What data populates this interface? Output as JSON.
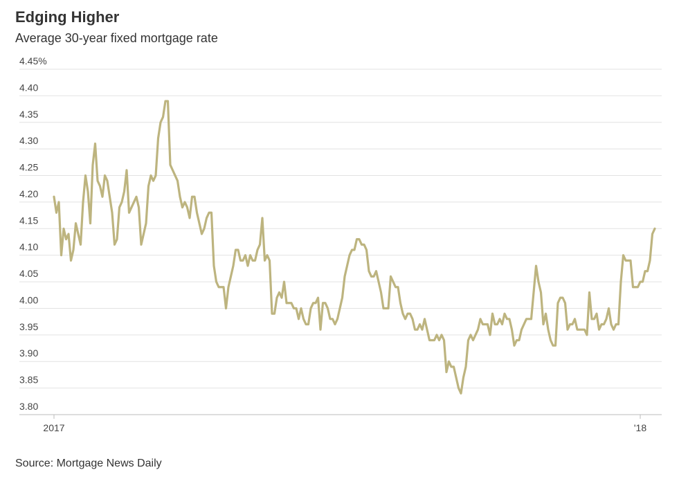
{
  "chart_data": {
    "type": "line",
    "title": "Edging Higher",
    "subtitle": "Average 30-year fixed mortgage rate",
    "source": "Source: Mortgage News Daily",
    "color": "#bdb47f",
    "grid": true,
    "ylim": [
      3.8,
      4.45
    ],
    "yticks": [
      {
        "value": 3.8,
        "label": "3.80"
      },
      {
        "value": 3.85,
        "label": "3.85"
      },
      {
        "value": 3.9,
        "label": "3.90"
      },
      {
        "value": 3.95,
        "label": "3.95"
      },
      {
        "value": 4.0,
        "label": "4.00"
      },
      {
        "value": 4.05,
        "label": "4.05"
      },
      {
        "value": 4.1,
        "label": "4.10"
      },
      {
        "value": 4.15,
        "label": "4.15"
      },
      {
        "value": 4.2,
        "label": "4.20"
      },
      {
        "value": 4.25,
        "label": "4.25"
      },
      {
        "value": 4.3,
        "label": "4.30"
      },
      {
        "value": 4.35,
        "label": "4.35"
      },
      {
        "value": 4.4,
        "label": "4.40"
      },
      {
        "value": 4.45,
        "label": "4.45%"
      }
    ],
    "categories": [
      "2017",
      null,
      null,
      null,
      null,
      null,
      null,
      null,
      null,
      null,
      null,
      null,
      null,
      null,
      null,
      null,
      null,
      null,
      null,
      null,
      null,
      null,
      null,
      null,
      null,
      null,
      null,
      null,
      null,
      null,
      null,
      null,
      null,
      null,
      null,
      null,
      null,
      null,
      null,
      null,
      null,
      null,
      null,
      null,
      null,
      null,
      null,
      null,
      null,
      null,
      null,
      null,
      null,
      null,
      null,
      null,
      null,
      null,
      null,
      null,
      null,
      null,
      null,
      null,
      null,
      null,
      null,
      null,
      null,
      null,
      null,
      null,
      null,
      null,
      null,
      null,
      null,
      null,
      null,
      null,
      null,
      null,
      null,
      null,
      null,
      null,
      null,
      null,
      null,
      null,
      null,
      null,
      null,
      null,
      null,
      null,
      null,
      null,
      null,
      null,
      null,
      null,
      null,
      null,
      null,
      null,
      null,
      null,
      null,
      null,
      null,
      null,
      null,
      null,
      null,
      null,
      null,
      null,
      null,
      null,
      null,
      null,
      null,
      null,
      null,
      null,
      null,
      null,
      null,
      null,
      null,
      null,
      null,
      null,
      null,
      null,
      null,
      null,
      null,
      null,
      null,
      null,
      null,
      null,
      null,
      null,
      null,
      null,
      null,
      null,
      null,
      null,
      null,
      null,
      null,
      null,
      null,
      null,
      null,
      null,
      null,
      null,
      null,
      null,
      null,
      null,
      null,
      null,
      null,
      null,
      null,
      null,
      null,
      null,
      null,
      null,
      null,
      null,
      null,
      null,
      null,
      null,
      null,
      null,
      null,
      null,
      null,
      null,
      null,
      null,
      null,
      null,
      null,
      null,
      null,
      null,
      null,
      null,
      null,
      null,
      null,
      null,
      null,
      null,
      null,
      null,
      null,
      null,
      null,
      null,
      null,
      null,
      null,
      null,
      null,
      null,
      null,
      null,
      null,
      null,
      null,
      null,
      null,
      null,
      null,
      null,
      null,
      null,
      null,
      null,
      null,
      null,
      null,
      null,
      null,
      null,
      null,
      null,
      null,
      null,
      null,
      null,
      "'18",
      null,
      null,
      null,
      null,
      null,
      null
    ],
    "values": [
      4.21,
      4.18,
      4.2,
      4.1,
      4.15,
      4.13,
      4.14,
      4.09,
      4.11,
      4.16,
      4.14,
      4.12,
      4.2,
      4.25,
      4.22,
      4.16,
      4.27,
      4.31,
      4.24,
      4.23,
      4.21,
      4.25,
      4.24,
      4.21,
      4.18,
      4.12,
      4.13,
      4.19,
      4.2,
      4.22,
      4.26,
      4.18,
      4.19,
      4.2,
      4.21,
      4.19,
      4.12,
      4.14,
      4.16,
      4.23,
      4.25,
      4.24,
      4.25,
      4.32,
      4.35,
      4.36,
      4.39,
      4.39,
      4.27,
      4.26,
      4.25,
      4.24,
      4.21,
      4.19,
      4.2,
      4.19,
      4.17,
      4.21,
      4.21,
      4.18,
      4.16,
      4.14,
      4.15,
      4.17,
      4.18,
      4.18,
      4.08,
      4.05,
      4.04,
      4.04,
      4.04,
      4.0,
      4.04,
      4.06,
      4.08,
      4.11,
      4.11,
      4.09,
      4.09,
      4.1,
      4.08,
      4.1,
      4.09,
      4.09,
      4.11,
      4.12,
      4.17,
      4.09,
      4.1,
      4.09,
      3.99,
      3.99,
      4.02,
      4.03,
      4.02,
      4.05,
      4.01,
      4.01,
      4.01,
      4.0,
      4.0,
      3.98,
      4.0,
      3.98,
      3.97,
      3.97,
      4.0,
      4.01,
      4.01,
      4.02,
      3.96,
      4.01,
      4.01,
      4.0,
      3.98,
      3.98,
      3.97,
      3.98,
      4.0,
      4.02,
      4.06,
      4.08,
      4.1,
      4.11,
      4.11,
      4.13,
      4.13,
      4.12,
      4.12,
      4.11,
      4.07,
      4.06,
      4.06,
      4.07,
      4.05,
      4.03,
      4.0,
      4.0,
      4.0,
      4.06,
      4.05,
      4.04,
      4.04,
      4.01,
      3.99,
      3.98,
      3.99,
      3.99,
      3.98,
      3.96,
      3.96,
      3.97,
      3.96,
      3.98,
      3.96,
      3.94,
      3.94,
      3.94,
      3.95,
      3.94,
      3.95,
      3.94,
      3.88,
      3.9,
      3.89,
      3.89,
      3.87,
      3.85,
      3.84,
      3.87,
      3.89,
      3.94,
      3.95,
      3.94,
      3.95,
      3.96,
      3.98,
      3.97,
      3.97,
      3.97,
      3.95,
      3.99,
      3.97,
      3.97,
      3.98,
      3.97,
      3.99,
      3.98,
      3.98,
      3.96,
      3.93,
      3.94,
      3.94,
      3.96,
      3.97,
      3.98,
      3.98,
      3.98,
      4.03,
      4.08,
      4.05,
      4.03,
      3.97,
      3.99,
      3.96,
      3.94,
      3.93,
      3.93,
      4.01,
      4.02,
      4.02,
      4.01,
      3.96,
      3.97,
      3.97,
      3.98,
      3.96,
      3.96,
      3.96,
      3.96,
      3.95,
      4.03,
      3.98,
      3.98,
      3.99,
      3.96,
      3.97,
      3.97,
      3.98,
      4.0,
      3.97,
      3.96,
      3.97,
      3.97,
      4.05,
      4.1,
      4.09,
      4.09,
      4.09,
      4.04,
      4.04,
      4.04,
      4.05,
      4.05,
      4.07,
      4.07,
      4.09,
      4.14,
      4.15
    ]
  }
}
